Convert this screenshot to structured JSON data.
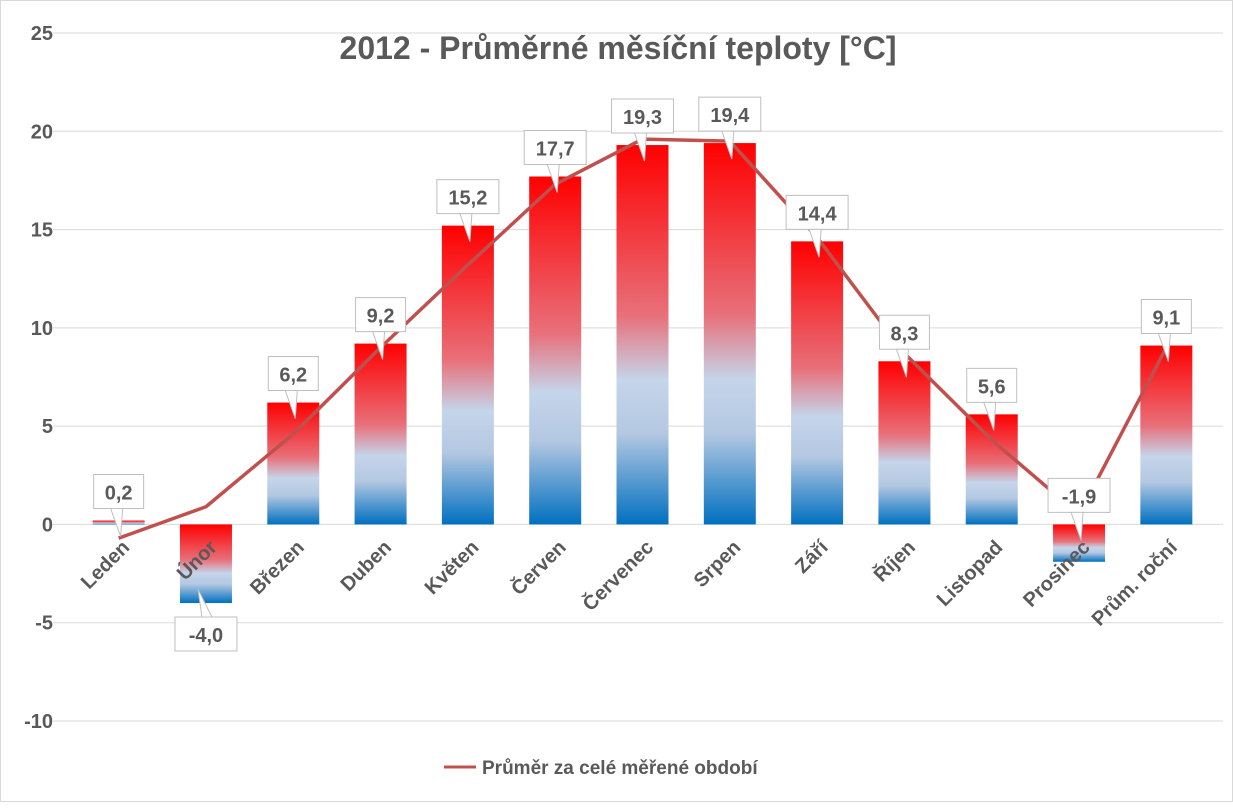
{
  "chart_data": {
    "type": "bar",
    "title": "2012 - Průměrné měsíční teploty [°C]",
    "xlabel": "",
    "ylabel": "",
    "ylim": [
      -10,
      25
    ],
    "yticks": [
      -10,
      -5,
      0,
      5,
      10,
      15,
      20,
      25
    ],
    "grid": true,
    "legend_position": "bottom",
    "categories": [
      "Leden",
      "Únor",
      "Březen",
      "Duben",
      "Květen",
      "Červen",
      "Červenec",
      "Srpen",
      "Září",
      "Říjen",
      "Listopad",
      "Prosinec",
      "Prům. roční"
    ],
    "series": [
      {
        "name": "2012",
        "type": "bar",
        "values": [
          0.2,
          -4.0,
          6.2,
          9.2,
          15.2,
          17.7,
          19.3,
          19.4,
          14.4,
          8.3,
          5.6,
          -1.9,
          9.1
        ],
        "labels": [
          "0,2",
          "-4,0",
          "6,2",
          "9,2",
          "15,2",
          "17,7",
          "19,3",
          "19,4",
          "14,4",
          "8,3",
          "5,6",
          "-1,9",
          "9,1"
        ]
      },
      {
        "name": "Průměr za celé měřené období",
        "type": "line",
        "values": [
          -0.7,
          0.9,
          4.6,
          9.0,
          13.2,
          17.3,
          19.6,
          19.5,
          14.6,
          8.7,
          4.3,
          0.5,
          9.0
        ]
      }
    ],
    "colors": {
      "bar_top": "#ff0000",
      "bar_mid": "#c5d5ea",
      "bar_bottom": "#0070c0",
      "line": "#c0504d",
      "grid": "#d9d9d9",
      "text": "#595959"
    }
  }
}
